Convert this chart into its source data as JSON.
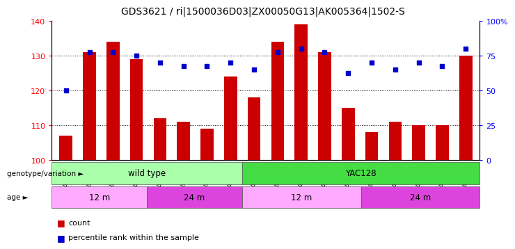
{
  "title": "GDS3621 / ri|1500036D03|ZX00050G13|AK005364|1502-S",
  "samples": [
    "GSM491327",
    "GSM491328",
    "GSM491329",
    "GSM491330",
    "GSM491336",
    "GSM491337",
    "GSM491338",
    "GSM491339",
    "GSM491331",
    "GSM491332",
    "GSM491333",
    "GSM491334",
    "GSM491335",
    "GSM491340",
    "GSM491341",
    "GSM491342",
    "GSM491343",
    "GSM491344"
  ],
  "counts": [
    107,
    131,
    134,
    129,
    112,
    111,
    109,
    124,
    118,
    134,
    139,
    131,
    115,
    108,
    111,
    110,
    110,
    130
  ],
  "percentile_values": [
    120,
    131,
    131,
    130,
    128,
    127,
    127,
    128,
    126,
    131,
    132,
    131,
    125,
    128,
    126,
    128,
    127,
    132
  ],
  "bar_color": "#cc0000",
  "dot_color": "#0000cc",
  "ylim_left": [
    100,
    140
  ],
  "ylim_right": [
    0,
    100
  ],
  "yticks_left": [
    100,
    110,
    120,
    130,
    140
  ],
  "yticks_right": [
    0,
    25,
    50,
    75,
    100
  ],
  "grid_values": [
    110,
    120,
    130
  ],
  "genotype_groups": [
    {
      "label": "wild type",
      "start": 0,
      "end": 8,
      "color": "#aaffaa"
    },
    {
      "label": "YAC128",
      "start": 8,
      "end": 18,
      "color": "#44dd44"
    }
  ],
  "age_groups": [
    {
      "label": "12 m",
      "start": 0,
      "end": 4,
      "color": "#ffaaff"
    },
    {
      "label": "24 m",
      "start": 4,
      "end": 8,
      "color": "#dd44dd"
    },
    {
      "label": "12 m",
      "start": 8,
      "end": 13,
      "color": "#ffaaff"
    },
    {
      "label": "24 m",
      "start": 13,
      "end": 18,
      "color": "#dd44dd"
    }
  ],
  "background_color": "#ffffff",
  "plot_bg_color": "#ffffff",
  "title_fontsize": 10
}
